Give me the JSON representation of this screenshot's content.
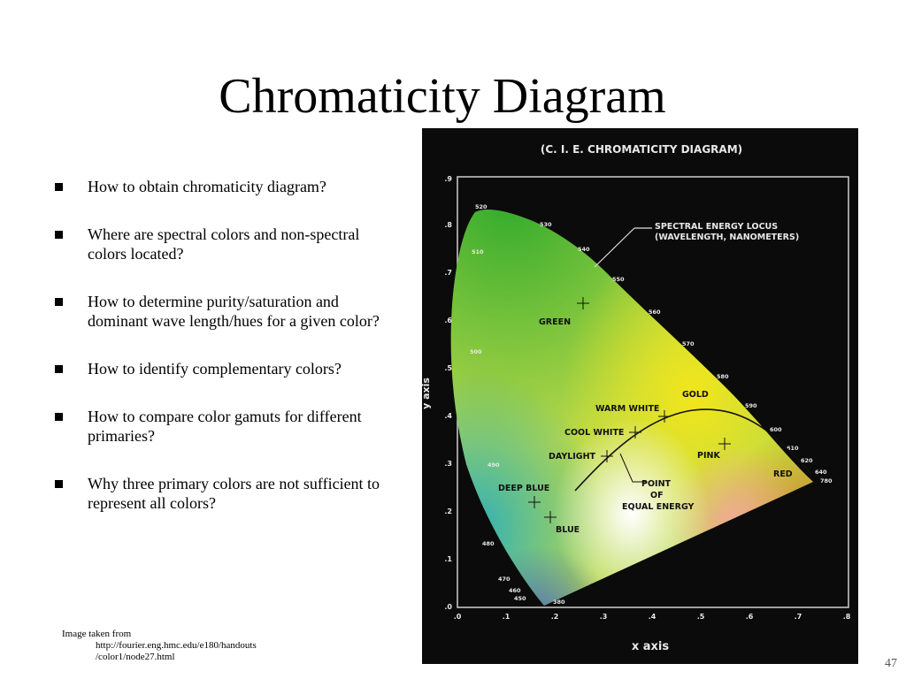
{
  "slide": {
    "title": "Chromaticity Diagram",
    "bullets": [
      "How to obtain chromaticity diagram?",
      "Where are spectral colors and non-spectral colors located?",
      "How to determine purity/saturation and dominant wave length/hues for a given color?",
      "How to identify complementary colors?",
      "How to compare color gamuts for different primaries?",
      "Why three primary colors are not sufficient to represent all colors?"
    ],
    "credit_line1": "Image taken from",
    "credit_line2": "http://fourier.eng.hmc.edu/e180/handouts",
    "credit_line3": "/color1/node27.html",
    "slide_number": "47"
  },
  "figure": {
    "title": "(C. I. E.  CHROMATICITY  DIAGRAM)",
    "x_axis_label": "x axis",
    "y_axis_label": "y axis",
    "x_ticks": [
      ".0",
      ".1",
      ".2",
      ".3",
      ".4",
      ".5",
      ".6",
      ".7",
      ".8"
    ],
    "y_ticks": [
      ".0",
      ".1",
      ".2",
      ".3",
      ".4",
      ".5",
      ".6",
      ".7",
      ".8",
      ".9"
    ],
    "locus_label_line1": "SPECTRAL ENERGY LOCUS",
    "locus_label_line2": "(WAVELENGTH, NANOMETERS)",
    "wavelengths": [
      "520",
      "530",
      "540",
      "550",
      "560",
      "570",
      "580",
      "590",
      "600",
      "610",
      "620",
      "640",
      "780",
      "510",
      "500",
      "490",
      "480",
      "470",
      "460",
      "450",
      "380"
    ],
    "region_labels": {
      "green": "GREEN",
      "gold": "GOLD",
      "warm_white": "WARM  WHITE",
      "cool_white": "COOL WHITE",
      "daylight": "DAYLIGHT",
      "pink": "PINK",
      "red": "RED",
      "deep_blue": "DEEP  BLUE",
      "blue": "BLUE",
      "point_line1": "POINT",
      "point_line2": "OF",
      "point_line3": "EQUAL ENERGY"
    }
  }
}
